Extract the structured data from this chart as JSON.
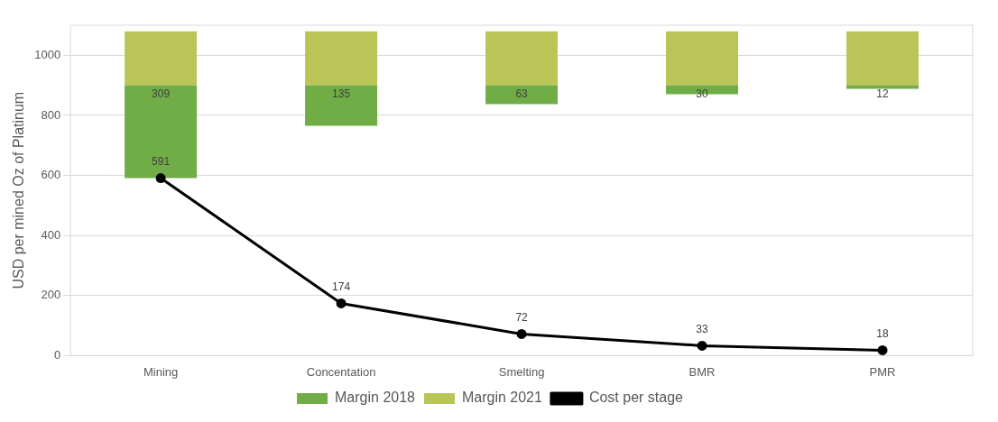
{
  "chart_data": {
    "type": "bar",
    "ylabel": "USD per mined Oz of Platinum",
    "categories": [
      "Mining",
      "Concentation",
      "Smelting",
      "BMR",
      "PMR"
    ],
    "series": [
      {
        "name": "Margin 2018",
        "color": "#70ad47",
        "values": [
          309,
          135,
          63,
          30,
          12
        ],
        "base": [
          591,
          765,
          837,
          870,
          888
        ],
        "value_labels": [
          "309",
          "135",
          "63",
          "30",
          "12"
        ]
      },
      {
        "name": "Margin 2021",
        "color": "#b9c657",
        "values": [
          180,
          180,
          180,
          180,
          180
        ],
        "base": [
          900,
          900,
          900,
          900,
          900
        ]
      },
      {
        "name": "Cost per stage",
        "type": "line",
        "color": "#000000",
        "values": [
          591,
          174,
          72,
          33,
          18
        ],
        "value_labels": [
          "591",
          "174",
          "72",
          "33",
          "18"
        ]
      }
    ],
    "ylim": [
      0,
      1100
    ],
    "yticks": [
      0,
      200,
      400,
      600,
      800,
      1000
    ],
    "grid": "y",
    "legend": "bottom",
    "marker": "circle"
  }
}
